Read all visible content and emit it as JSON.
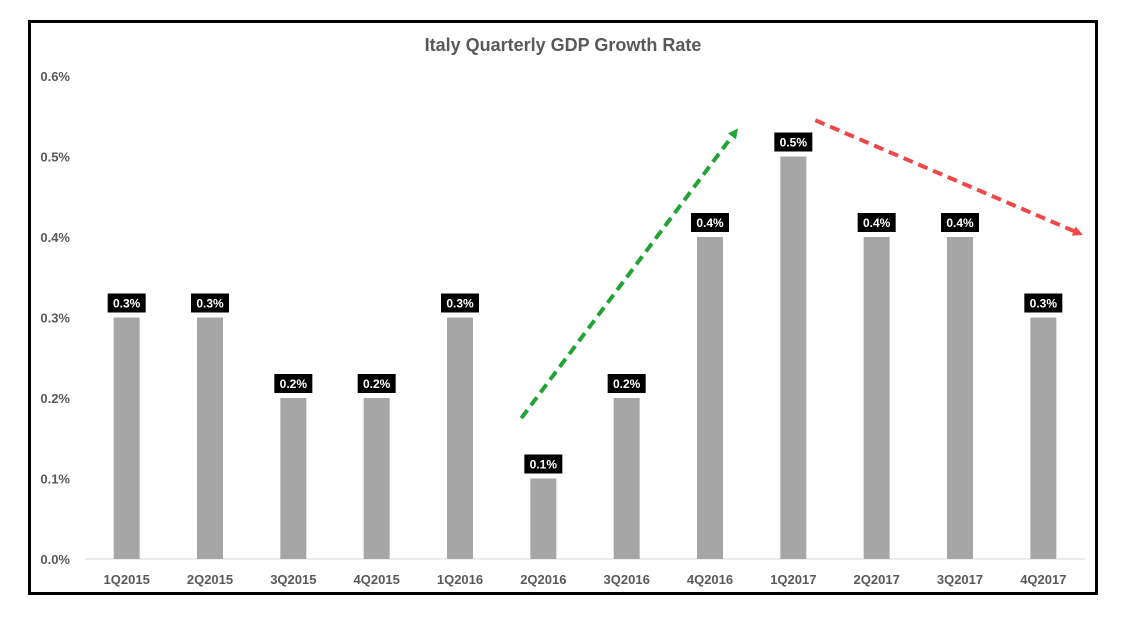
{
  "chart_data": {
    "type": "bar",
    "title": "Italy Quarterly GDP Growth Rate",
    "xlabel": "",
    "ylabel": "",
    "categories": [
      "1Q2015",
      "2Q2015",
      "3Q2015",
      "4Q2015",
      "1Q2016",
      "2Q2016",
      "3Q2016",
      "4Q2016",
      "1Q2017",
      "2Q2017",
      "3Q2017",
      "4Q2017"
    ],
    "values": [
      0.3,
      0.3,
      0.2,
      0.2,
      0.3,
      0.1,
      0.2,
      0.4,
      0.5,
      0.4,
      0.4,
      0.3
    ],
    "data_labels": [
      "0.3%",
      "0.3%",
      "0.2%",
      "0.2%",
      "0.3%",
      "0.1%",
      "0.2%",
      "0.4%",
      "0.5%",
      "0.4%",
      "0.4%",
      "0.3%"
    ],
    "ylim": [
      0,
      0.6
    ],
    "yticks": [
      0.0,
      0.1,
      0.2,
      0.3,
      0.4,
      0.5,
      0.6
    ],
    "ytick_labels": [
      "0.0%",
      "0.1%",
      "0.2%",
      "0.3%",
      "0.4%",
      "0.5%",
      "0.6%"
    ],
    "grid": false,
    "legend": "none",
    "colors": {
      "bar": "#a6a6a6",
      "data_label_bg": "#000000",
      "data_label_text": "#ffffff",
      "axis_text": "#595959",
      "axis_line": "#d9d9d9",
      "up_trend_arrow": "#21a336",
      "down_trend_arrow": "#f04848"
    },
    "annotations": [
      {
        "type": "dashed-arrow",
        "direction": "up",
        "from_category": "2Q2016",
        "to_category": "4Q2016",
        "color": "#21a336"
      },
      {
        "type": "dashed-arrow",
        "direction": "down",
        "from_category": "1Q2017",
        "to_category": "4Q2017",
        "color": "#f04848"
      }
    ]
  }
}
